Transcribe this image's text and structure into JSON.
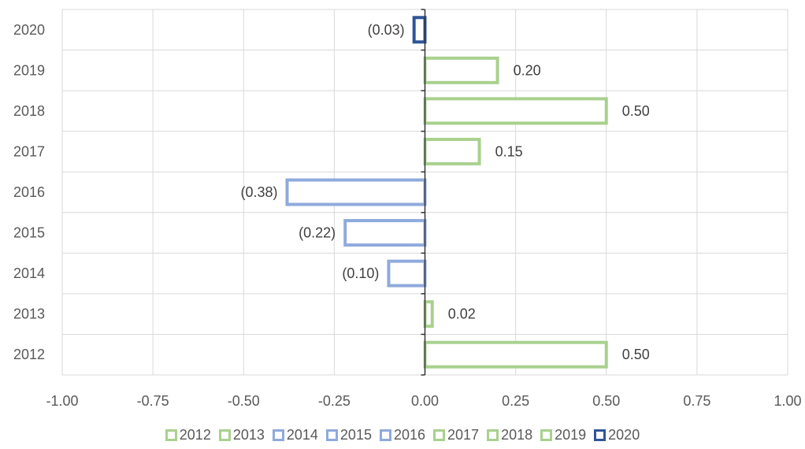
{
  "chart_data": {
    "type": "bar",
    "orientation": "horizontal",
    "categories": [
      "2012",
      "2013",
      "2014",
      "2015",
      "2016",
      "2017",
      "2018",
      "2019",
      "2020"
    ],
    "values": [
      0.5,
      0.02,
      -0.1,
      -0.22,
      -0.38,
      0.15,
      0.5,
      0.2,
      -0.03
    ],
    "data_labels": [
      "0.50",
      "0.02",
      "(0.10)",
      "(0.22)",
      "(0.38)",
      "0.15",
      "0.50",
      "0.20",
      "(0.03)"
    ],
    "bar_colors": [
      "#a9d18e",
      "#a9d18e",
      "#8faadc",
      "#8faadc",
      "#8faadc",
      "#a9d18e",
      "#a9d18e",
      "#a9d18e",
      "#2f5597"
    ],
    "xlim": [
      -1.0,
      1.0
    ],
    "x_ticks": [
      "-1.00",
      "-0.75",
      "-0.50",
      "-0.25",
      "0.00",
      "0.25",
      "0.50",
      "0.75",
      "1.00"
    ],
    "x_tick_values": [
      -1.0,
      -0.75,
      -0.5,
      -0.25,
      0.0,
      0.25,
      0.5,
      0.75,
      1.0
    ],
    "bar_style": "outline",
    "grid": true,
    "legend_position": "bottom",
    "legend": [
      {
        "label": "2012",
        "color": "#a9d18e"
      },
      {
        "label": "2013",
        "color": "#a9d18e"
      },
      {
        "label": "2014",
        "color": "#8faadc"
      },
      {
        "label": "2015",
        "color": "#8faadc"
      },
      {
        "label": "2016",
        "color": "#8faadc"
      },
      {
        "label": "2017",
        "color": "#a9d18e"
      },
      {
        "label": "2018",
        "color": "#a9d18e"
      },
      {
        "label": "2019",
        "color": "#a9d18e"
      },
      {
        "label": "2020",
        "color": "#2f5597"
      }
    ]
  }
}
